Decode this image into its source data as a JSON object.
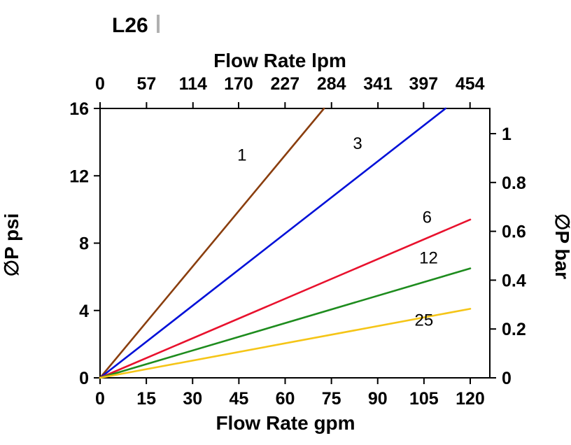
{
  "header": {
    "title": "L26"
  },
  "chart_data": {
    "type": "line",
    "title": "L26",
    "xlabel_top": "Flow Rate lpm",
    "xlabel_bottom": "Flow Rate gpm",
    "ylabel_left": "∅P psi",
    "ylabel_right": "∅P bar",
    "x_axis_gpm": {
      "ticks": [
        0,
        15,
        30,
        45,
        60,
        75,
        90,
        105,
        120
      ],
      "range": [
        0,
        126.4
      ]
    },
    "x_axis_lpm": {
      "ticks": [
        0,
        57,
        114,
        170,
        227,
        284,
        341,
        397,
        454
      ]
    },
    "y_axis_psi": {
      "ticks": [
        0,
        4,
        8,
        12,
        16
      ],
      "range": [
        0,
        16
      ]
    },
    "y_axis_bar": {
      "ticks": [
        0,
        0.2,
        0.4,
        0.6,
        0.8,
        1
      ]
    },
    "grid": false,
    "legend": "inline-labels",
    "series": [
      {
        "name": "1",
        "color": "#8a3e0e",
        "points": [
          [
            0,
            0
          ],
          [
            72.6,
            16
          ]
        ],
        "label": {
          "x": 46,
          "y": 12.9
        }
      },
      {
        "name": "3",
        "color": "#0010d8",
        "points": [
          [
            0,
            0
          ],
          [
            112,
            16
          ]
        ],
        "label": {
          "x": 83.5,
          "y": 13.6
        }
      },
      {
        "name": "6",
        "color": "#e8112d",
        "points": [
          [
            0,
            0
          ],
          [
            120,
            9.4
          ]
        ],
        "label": {
          "x": 106,
          "y": 9.2
        }
      },
      {
        "name": "12",
        "color": "#1e8c1e",
        "points": [
          [
            0,
            0
          ],
          [
            120,
            6.5
          ]
        ],
        "label": {
          "x": 106.5,
          "y": 6.8
        }
      },
      {
        "name": "25",
        "color": "#f5c517",
        "points": [
          [
            0,
            0
          ],
          [
            120,
            4.1
          ]
        ],
        "label": {
          "x": 105,
          "y": 3.1
        }
      }
    ]
  }
}
